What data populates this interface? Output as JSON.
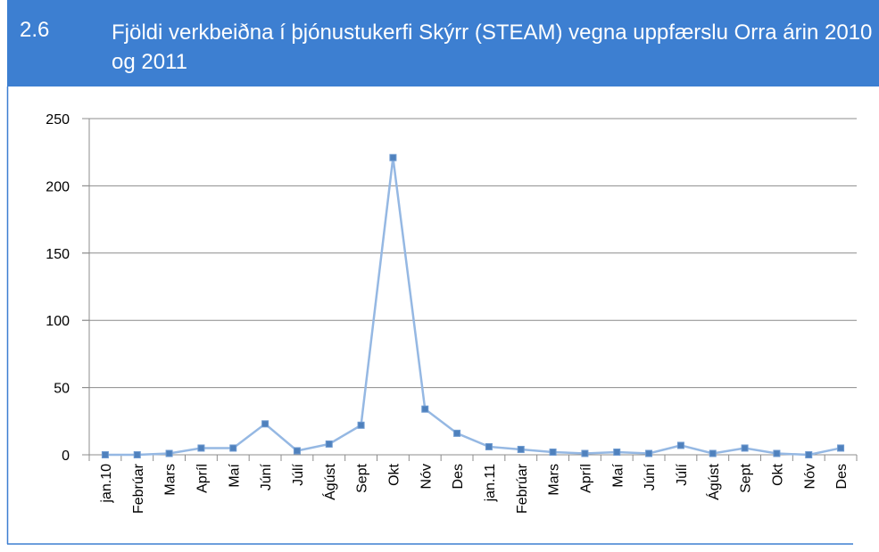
{
  "header": {
    "number": "2.6",
    "title": "Fjöldi verkbeiðna í þjónustukerfi Skýrr (STEAM) vegna uppfærslu Orra árin 2010 og 2011"
  },
  "chart_data": {
    "type": "line",
    "categories": [
      "jan.10",
      "Febrúar",
      "Mars",
      "Apríl",
      "Maí",
      "Júní",
      "Júlí",
      "Ágúst",
      "Sept",
      "Okt",
      "Nóv",
      "Des",
      "jan.11",
      "Febrúar",
      "Mars",
      "Apríl",
      "Maí",
      "Júní",
      "Júlí",
      "Ágúst",
      "Sept",
      "Okt",
      "Nóv",
      "Des"
    ],
    "values": [
      0,
      0,
      1,
      5,
      5,
      23,
      3,
      8,
      22,
      221,
      34,
      16,
      6,
      4,
      2,
      1,
      2,
      1,
      7,
      1,
      5,
      1,
      0,
      5
    ],
    "color": "#4f81bd",
    "line_color": "#95b8e3",
    "ylim": [
      0,
      250
    ],
    "yticks": [
      0,
      50,
      100,
      150,
      200,
      250
    ],
    "grid": true
  }
}
